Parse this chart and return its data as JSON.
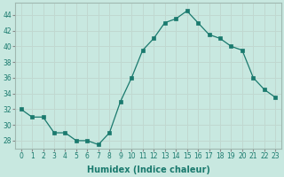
{
  "x": [
    0,
    1,
    2,
    3,
    4,
    5,
    6,
    7,
    8,
    9,
    10,
    11,
    12,
    13,
    14,
    15,
    16,
    17,
    18,
    19,
    20,
    21,
    22,
    23
  ],
  "y": [
    32,
    31,
    31,
    29,
    29,
    28,
    28,
    27.5,
    29,
    33,
    36,
    39.5,
    41,
    43,
    43.5,
    44.5,
    43,
    41.5,
    41,
    40,
    39.5,
    36,
    34.5,
    33.5
  ],
  "line_color": "#1a7a6e",
  "marker_color": "#1a7a6e",
  "bg_color": "#c8e8e0",
  "grid_color": "#c0d8d0",
  "xlabel": "Humidex (Indice chaleur)",
  "ylim": [
    27,
    45.5
  ],
  "xlim": [
    -0.5,
    23.5
  ],
  "yticks": [
    28,
    30,
    32,
    34,
    36,
    38,
    40,
    42,
    44
  ],
  "xticks": [
    0,
    1,
    2,
    3,
    4,
    5,
    6,
    7,
    8,
    9,
    10,
    11,
    12,
    13,
    14,
    15,
    16,
    17,
    18,
    19,
    20,
    21,
    22,
    23
  ],
  "xtick_labels": [
    "0",
    "1",
    "2",
    "3",
    "4",
    "5",
    "6",
    "7",
    "8",
    "9",
    "10",
    "11",
    "12",
    "13",
    "14",
    "15",
    "16",
    "17",
    "18",
    "19",
    "20",
    "21",
    "22",
    "23"
  ],
  "tick_fontsize": 5.5,
  "xlabel_fontsize": 7
}
